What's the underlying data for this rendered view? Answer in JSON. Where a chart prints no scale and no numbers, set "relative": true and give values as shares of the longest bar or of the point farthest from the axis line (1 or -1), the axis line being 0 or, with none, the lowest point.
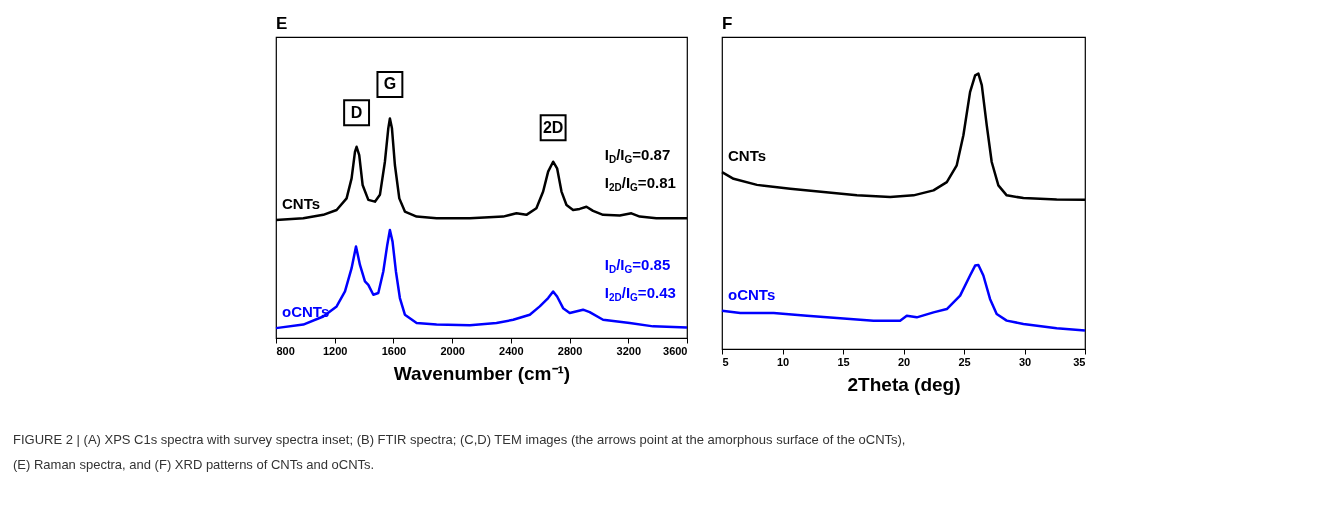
{
  "chart_data": [
    {
      "type": "line",
      "title": "E",
      "xlabel": "Wavenumber (cm⁻¹)",
      "relative": true,
      "xlim": [
        800,
        3600
      ],
      "xticks": [
        800,
        1200,
        1600,
        2000,
        2400,
        2800,
        3200,
        3600
      ],
      "grid": false,
      "marker": "none",
      "line_style": "solid",
      "series": [
        {
          "name": "CNTs",
          "color": "#000000",
          "x": [
            800,
            986,
            1122,
            1213,
            1281,
            1315,
            1338,
            1349,
            1367,
            1390,
            1429,
            1474,
            1508,
            1542,
            1565,
            1576,
            1590,
            1610,
            1640,
            1678,
            1758,
            1894,
            2121,
            2347,
            2438,
            2506,
            2574,
            2620,
            2654,
            2688,
            2715,
            2745,
            2779,
            2824,
            2869,
            2915,
            2960,
            3028,
            3142,
            3221,
            3278,
            3391,
            3600
          ],
          "values": [
            0.538,
            0.545,
            0.561,
            0.583,
            0.636,
            0.727,
            0.848,
            0.871,
            0.833,
            0.697,
            0.629,
            0.621,
            0.652,
            0.803,
            0.955,
            1.0,
            0.955,
            0.788,
            0.636,
            0.576,
            0.553,
            0.545,
            0.545,
            0.553,
            0.568,
            0.561,
            0.591,
            0.667,
            0.758,
            0.803,
            0.773,
            0.667,
            0.606,
            0.583,
            0.588,
            0.598,
            0.579,
            0.561,
            0.558,
            0.568,
            0.553,
            0.545,
            0.545
          ]
        },
        {
          "name": "oCNTs",
          "color": "#0000ff",
          "x": [
            800,
            986,
            1122,
            1213,
            1270,
            1315,
            1345,
            1372,
            1406,
            1429,
            1463,
            1497,
            1531,
            1558,
            1576,
            1594,
            1617,
            1644,
            1678,
            1758,
            1894,
            2121,
            2302,
            2416,
            2529,
            2597,
            2654,
            2688,
            2715,
            2756,
            2801,
            2892,
            2937,
            3028,
            3210,
            3369,
            3600
          ],
          "values": [
            0.045,
            0.061,
            0.098,
            0.144,
            0.212,
            0.318,
            0.417,
            0.333,
            0.258,
            0.242,
            0.197,
            0.205,
            0.303,
            0.424,
            0.492,
            0.439,
            0.303,
            0.182,
            0.106,
            0.068,
            0.061,
            0.058,
            0.068,
            0.083,
            0.106,
            0.144,
            0.182,
            0.212,
            0.189,
            0.136,
            0.114,
            0.129,
            0.118,
            0.083,
            0.068,
            0.053,
            0.048
          ]
        }
      ],
      "annotations": [
        {
          "text": "D",
          "x": 1349,
          "y": 0.871
        },
        {
          "text": "G",
          "x": 1576,
          "y": 1.0
        },
        {
          "text": "2D",
          "x": 2688,
          "y": 0.803
        },
        "I$_{D}$/I$_{G}$=0.87",
        "I$_{2D}$/I$_{G}$=0.81",
        "I$_{D}$/I$_{G}$=0.85",
        "I$_{2D}$/I$_{G}$=0.43"
      ]
    },
    {
      "type": "line",
      "title": "F",
      "xlabel": "2Theta (deg)",
      "relative": true,
      "xlim": [
        5,
        35
      ],
      "xticks": [
        5,
        10,
        15,
        20,
        25,
        30,
        35
      ],
      "grid": false,
      "marker": "none",
      "line_style": "solid",
      "series": [
        {
          "name": "CNTs",
          "color": "#000000",
          "x": [
            5.0,
            5.96,
            7.89,
            10.64,
            13.39,
            16.15,
            18.9,
            20.83,
            22.48,
            23.58,
            24.4,
            24.95,
            25.5,
            25.92,
            26.19,
            26.47,
            26.88,
            27.29,
            27.84,
            28.53,
            29.91,
            32.66,
            35.0
          ],
          "values": [
            0.642,
            0.618,
            0.596,
            0.582,
            0.57,
            0.558,
            0.552,
            0.558,
            0.576,
            0.606,
            0.667,
            0.776,
            0.933,
            0.994,
            1.0,
            0.958,
            0.812,
            0.679,
            0.594,
            0.558,
            0.548,
            0.543,
            0.542
          ]
        },
        {
          "name": "oCNTs",
          "color": "#0000ff",
          "x": [
            5.0,
            6.51,
            9.27,
            12.02,
            14.77,
            17.52,
            19.72,
            20.27,
            21.1,
            22.48,
            23.58,
            24.68,
            25.5,
            25.92,
            26.19,
            26.6,
            27.15,
            27.7,
            28.53,
            29.91,
            32.66,
            35.0
          ],
          "values": [
            0.139,
            0.131,
            0.131,
            0.121,
            0.112,
            0.103,
            0.103,
            0.121,
            0.115,
            0.133,
            0.145,
            0.194,
            0.267,
            0.303,
            0.305,
            0.267,
            0.182,
            0.127,
            0.103,
            0.091,
            0.075,
            0.067
          ]
        }
      ],
      "annotations": [
        "FIGURE 2 | (A) XPS C1s spectra with survey spectra inset; (B) FTIR spectra; (C,D) TEM images (the arrows point at the amorphous surface of the oCNTs),",
        "(E) Raman spectra, and (F) XRD patterns of CNTs and oCNTs."
      ]
    }
  ]
}
